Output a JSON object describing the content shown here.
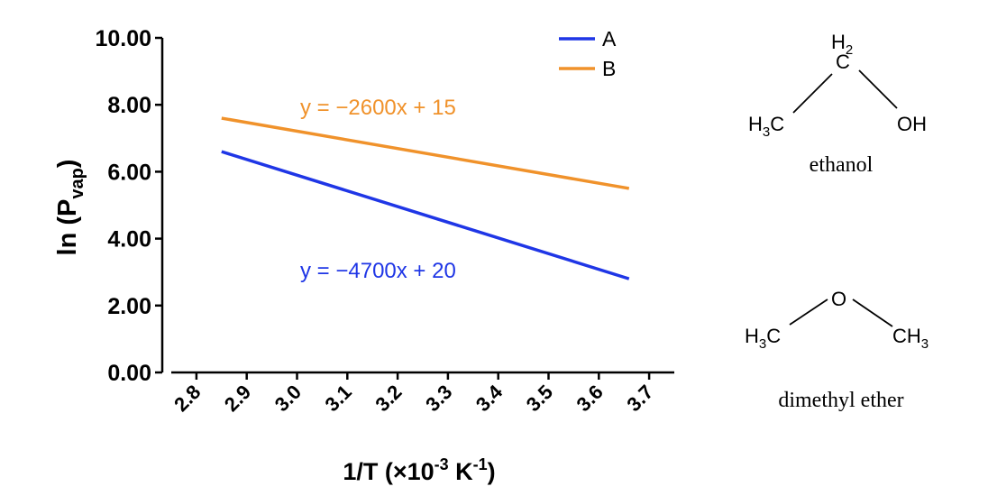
{
  "chart_data": {
    "type": "line",
    "title": "",
    "xlabel": "1/T (×10",
    "xlabel_sup1": "-3",
    "xlabel_mid": " K",
    "xlabel_sup2": "-1",
    "xlabel_end": ")",
    "ylabel": "ln (P",
    "ylabel_sub": "vap",
    "ylabel_end": ")",
    "xlim": [
      2.75,
      3.75
    ],
    "ylim": [
      0,
      10
    ],
    "xticks": [
      "2.8",
      "2.9",
      "3.0",
      "3.1",
      "3.2",
      "3.3",
      "3.4",
      "3.5",
      "3.6",
      "3.7"
    ],
    "yticks": [
      "0.00",
      "2.00",
      "4.00",
      "6.00",
      "8.00",
      "10.00"
    ],
    "legend_position": "top-right",
    "series": [
      {
        "name": "A",
        "color": "#1f36e6",
        "x": [
          2.85,
          3.66
        ],
        "y": [
          6.6,
          2.8
        ],
        "equation": "y = −4700x + 20"
      },
      {
        "name": "B",
        "color": "#f0922b",
        "x": [
          2.85,
          3.66
        ],
        "y": [
          7.6,
          5.5
        ],
        "equation": "y = −2600x + 15"
      }
    ]
  },
  "molecules": {
    "ethanol": {
      "ch2_h": "H",
      "ch2_sub": "2",
      "ch2_c": "C",
      "left": "H",
      "left_sub": "3",
      "left_c": "C",
      "right": "OH",
      "name": "ethanol"
    },
    "ether": {
      "o": "O",
      "left": "H",
      "left_sub": "3",
      "left_c": "C",
      "right_c": "CH",
      "right_sub": "3",
      "name": "dimethyl ether"
    }
  }
}
